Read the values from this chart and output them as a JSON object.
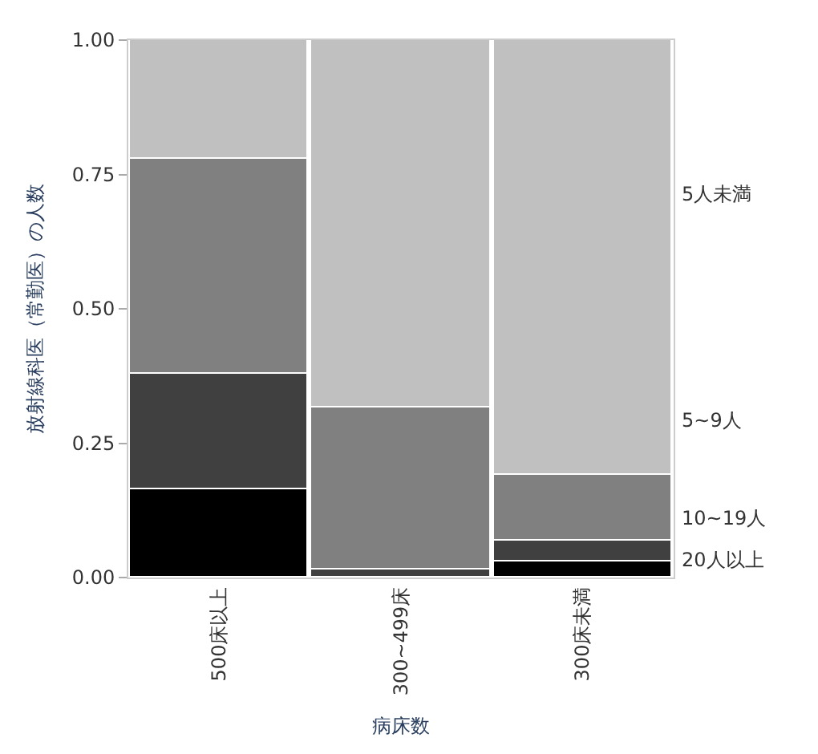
{
  "chart_data": {
    "type": "bar",
    "stacked": true,
    "xlabel": "病床数",
    "ylabel": "放射線科医（常勤医）の人数",
    "categories": [
      "500床以上",
      "300~499床",
      "300床未満"
    ],
    "series": [
      {
        "name": "20人以上",
        "color": "#000000",
        "values": [
          0.165,
          0,
          0.03
        ]
      },
      {
        "name": "10~19人",
        "color": "#404040",
        "values": [
          0.215,
          0.015,
          0.04
        ]
      },
      {
        "name": "5~9人",
        "color": "#808080",
        "values": [
          0.4,
          0.3,
          0.12
        ]
      },
      {
        "name": "5人未満",
        "color": "#c0c0c0",
        "values": [
          0.22,
          0.685,
          0.81
        ]
      }
    ],
    "ylim": [
      0,
      1
    ],
    "yticks": [
      {
        "value": 0,
        "label": "0.00"
      },
      {
        "value": 0.25,
        "label": "0.25"
      },
      {
        "value": 0.5,
        "label": "0.50"
      },
      {
        "value": 0.75,
        "label": "0.75"
      },
      {
        "value": 1,
        "label": "1.00"
      }
    ],
    "legend": false
  }
}
